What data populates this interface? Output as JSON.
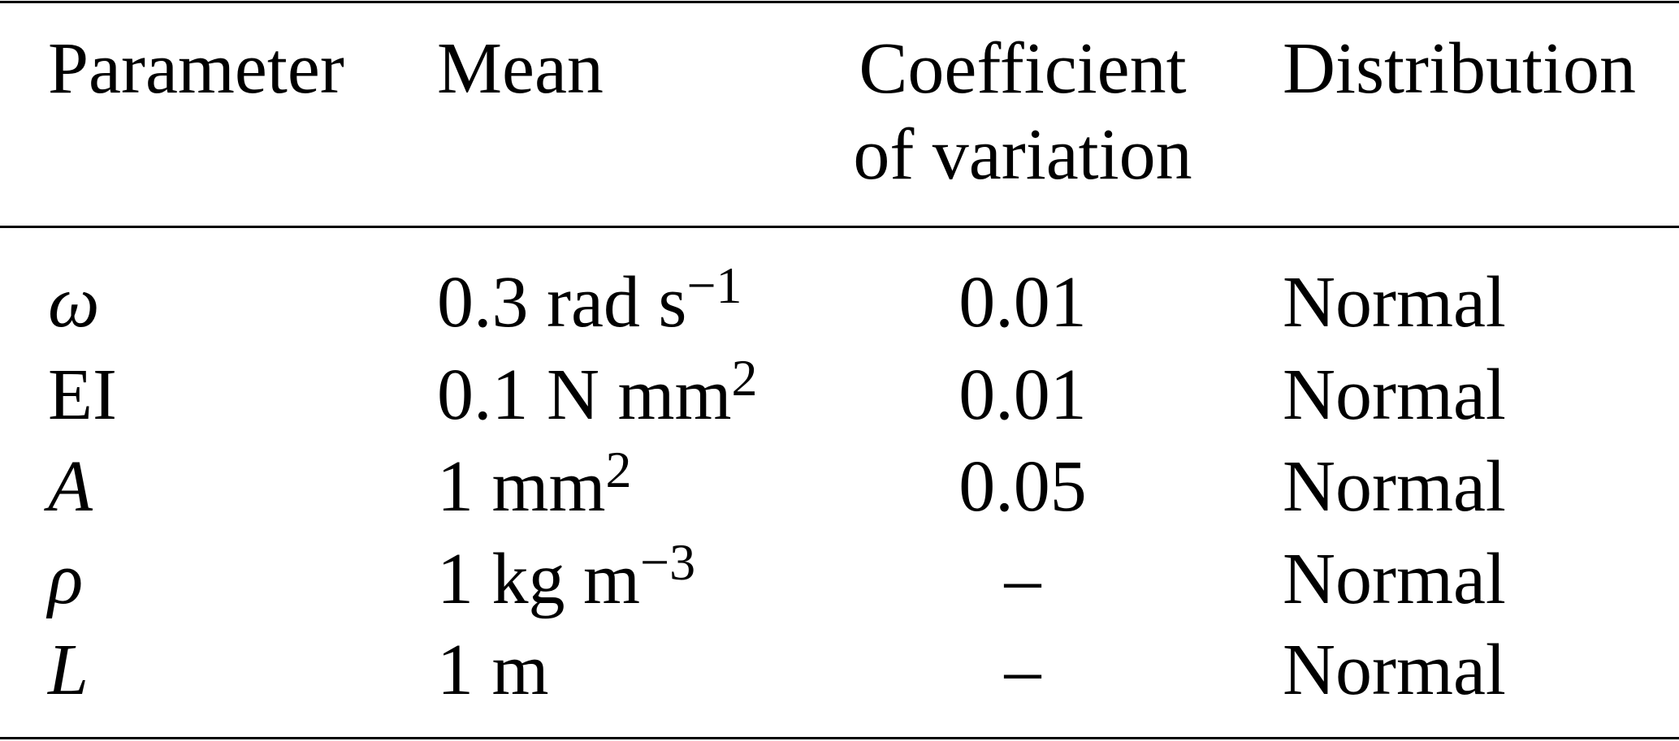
{
  "table": {
    "headers": [
      "Parameter",
      "Mean",
      "Coefficient",
      "of variation",
      "Distribution"
    ],
    "rows": [
      {
        "parameter": "ω",
        "mean": "0.3 rad s",
        "mean_sup": "−1",
        "cov": "0.01",
        "distribution": "Normal"
      },
      {
        "parameter": "EI",
        "mean": "0.1 N mm",
        "mean_sup": "2",
        "cov": "0.01",
        "distribution": "Normal"
      },
      {
        "parameter": "A",
        "mean": "1 mm",
        "mean_sup": "2",
        "cov": "0.05",
        "distribution": "Normal"
      },
      {
        "parameter": "ρ",
        "mean": "1 kg m",
        "mean_sup": "−3",
        "cov": "–",
        "distribution": "Normal"
      },
      {
        "parameter": "L",
        "mean": "1 m",
        "mean_sup": "",
        "cov": "–",
        "distribution": "Normal"
      }
    ]
  }
}
